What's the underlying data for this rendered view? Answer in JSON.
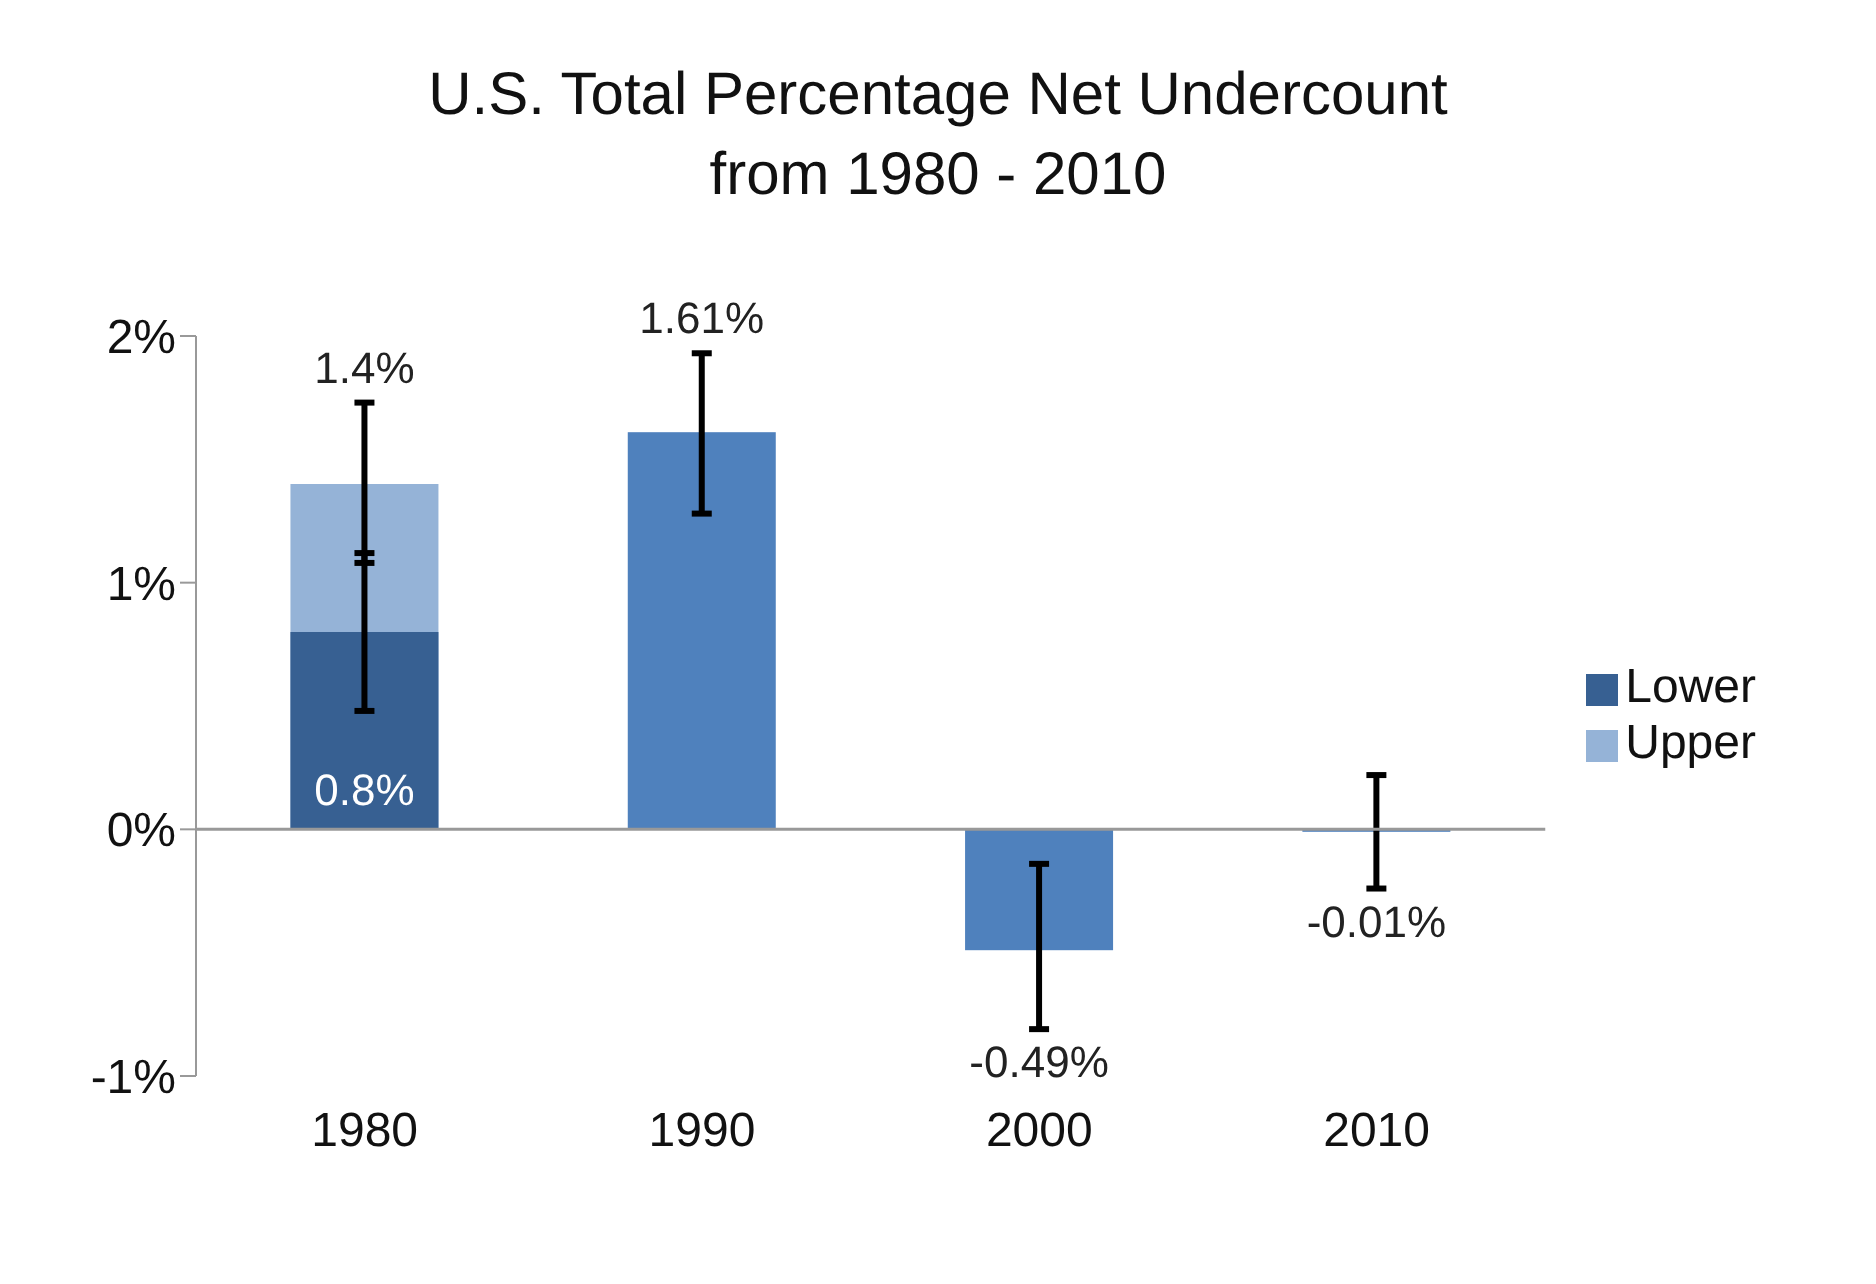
{
  "chart_data": {
    "type": "bar",
    "title": "U.S. Total Percentage Net Undercount",
    "subtitle": "from 1980 - 2010",
    "categories": [
      "1980",
      "1990",
      "2000",
      "2010"
    ],
    "series": [
      {
        "name": "Upper",
        "color": "#95b3d7",
        "values": [
          1.4,
          null,
          null,
          null
        ],
        "errors": [
          [
            1.08,
            1.73
          ],
          null,
          null,
          null
        ],
        "value_labels": [
          "1.4%",
          null,
          null,
          null
        ]
      },
      {
        "name": "Lower",
        "color": "#376092",
        "values": [
          0.8,
          null,
          null,
          null
        ],
        "value_labels": [
          "0.8%",
          null,
          null,
          null
        ],
        "errors": [
          [
            0.48,
            1.12
          ],
          null,
          null,
          null
        ]
      },
      {
        "color": "#4f81bd",
        "values": [
          null,
          1.61,
          -0.49,
          -0.01
        ],
        "value_labels": [
          null,
          "1.61%",
          "-0.49%",
          "-0.01%"
        ],
        "errors": [
          null,
          [
            1.28,
            1.93
          ],
          [
            -0.81,
            -0.14
          ],
          [
            -0.24,
            0.22
          ]
        ]
      }
    ],
    "ylim": [
      -1,
      2
    ],
    "yticks": [
      {
        "value": -1,
        "label": "-1%"
      },
      {
        "value": 0,
        "label": "0%"
      },
      {
        "value": 1,
        "label": "1%"
      },
      {
        "value": 2,
        "label": "2%"
      }
    ],
    "legend": "right"
  }
}
